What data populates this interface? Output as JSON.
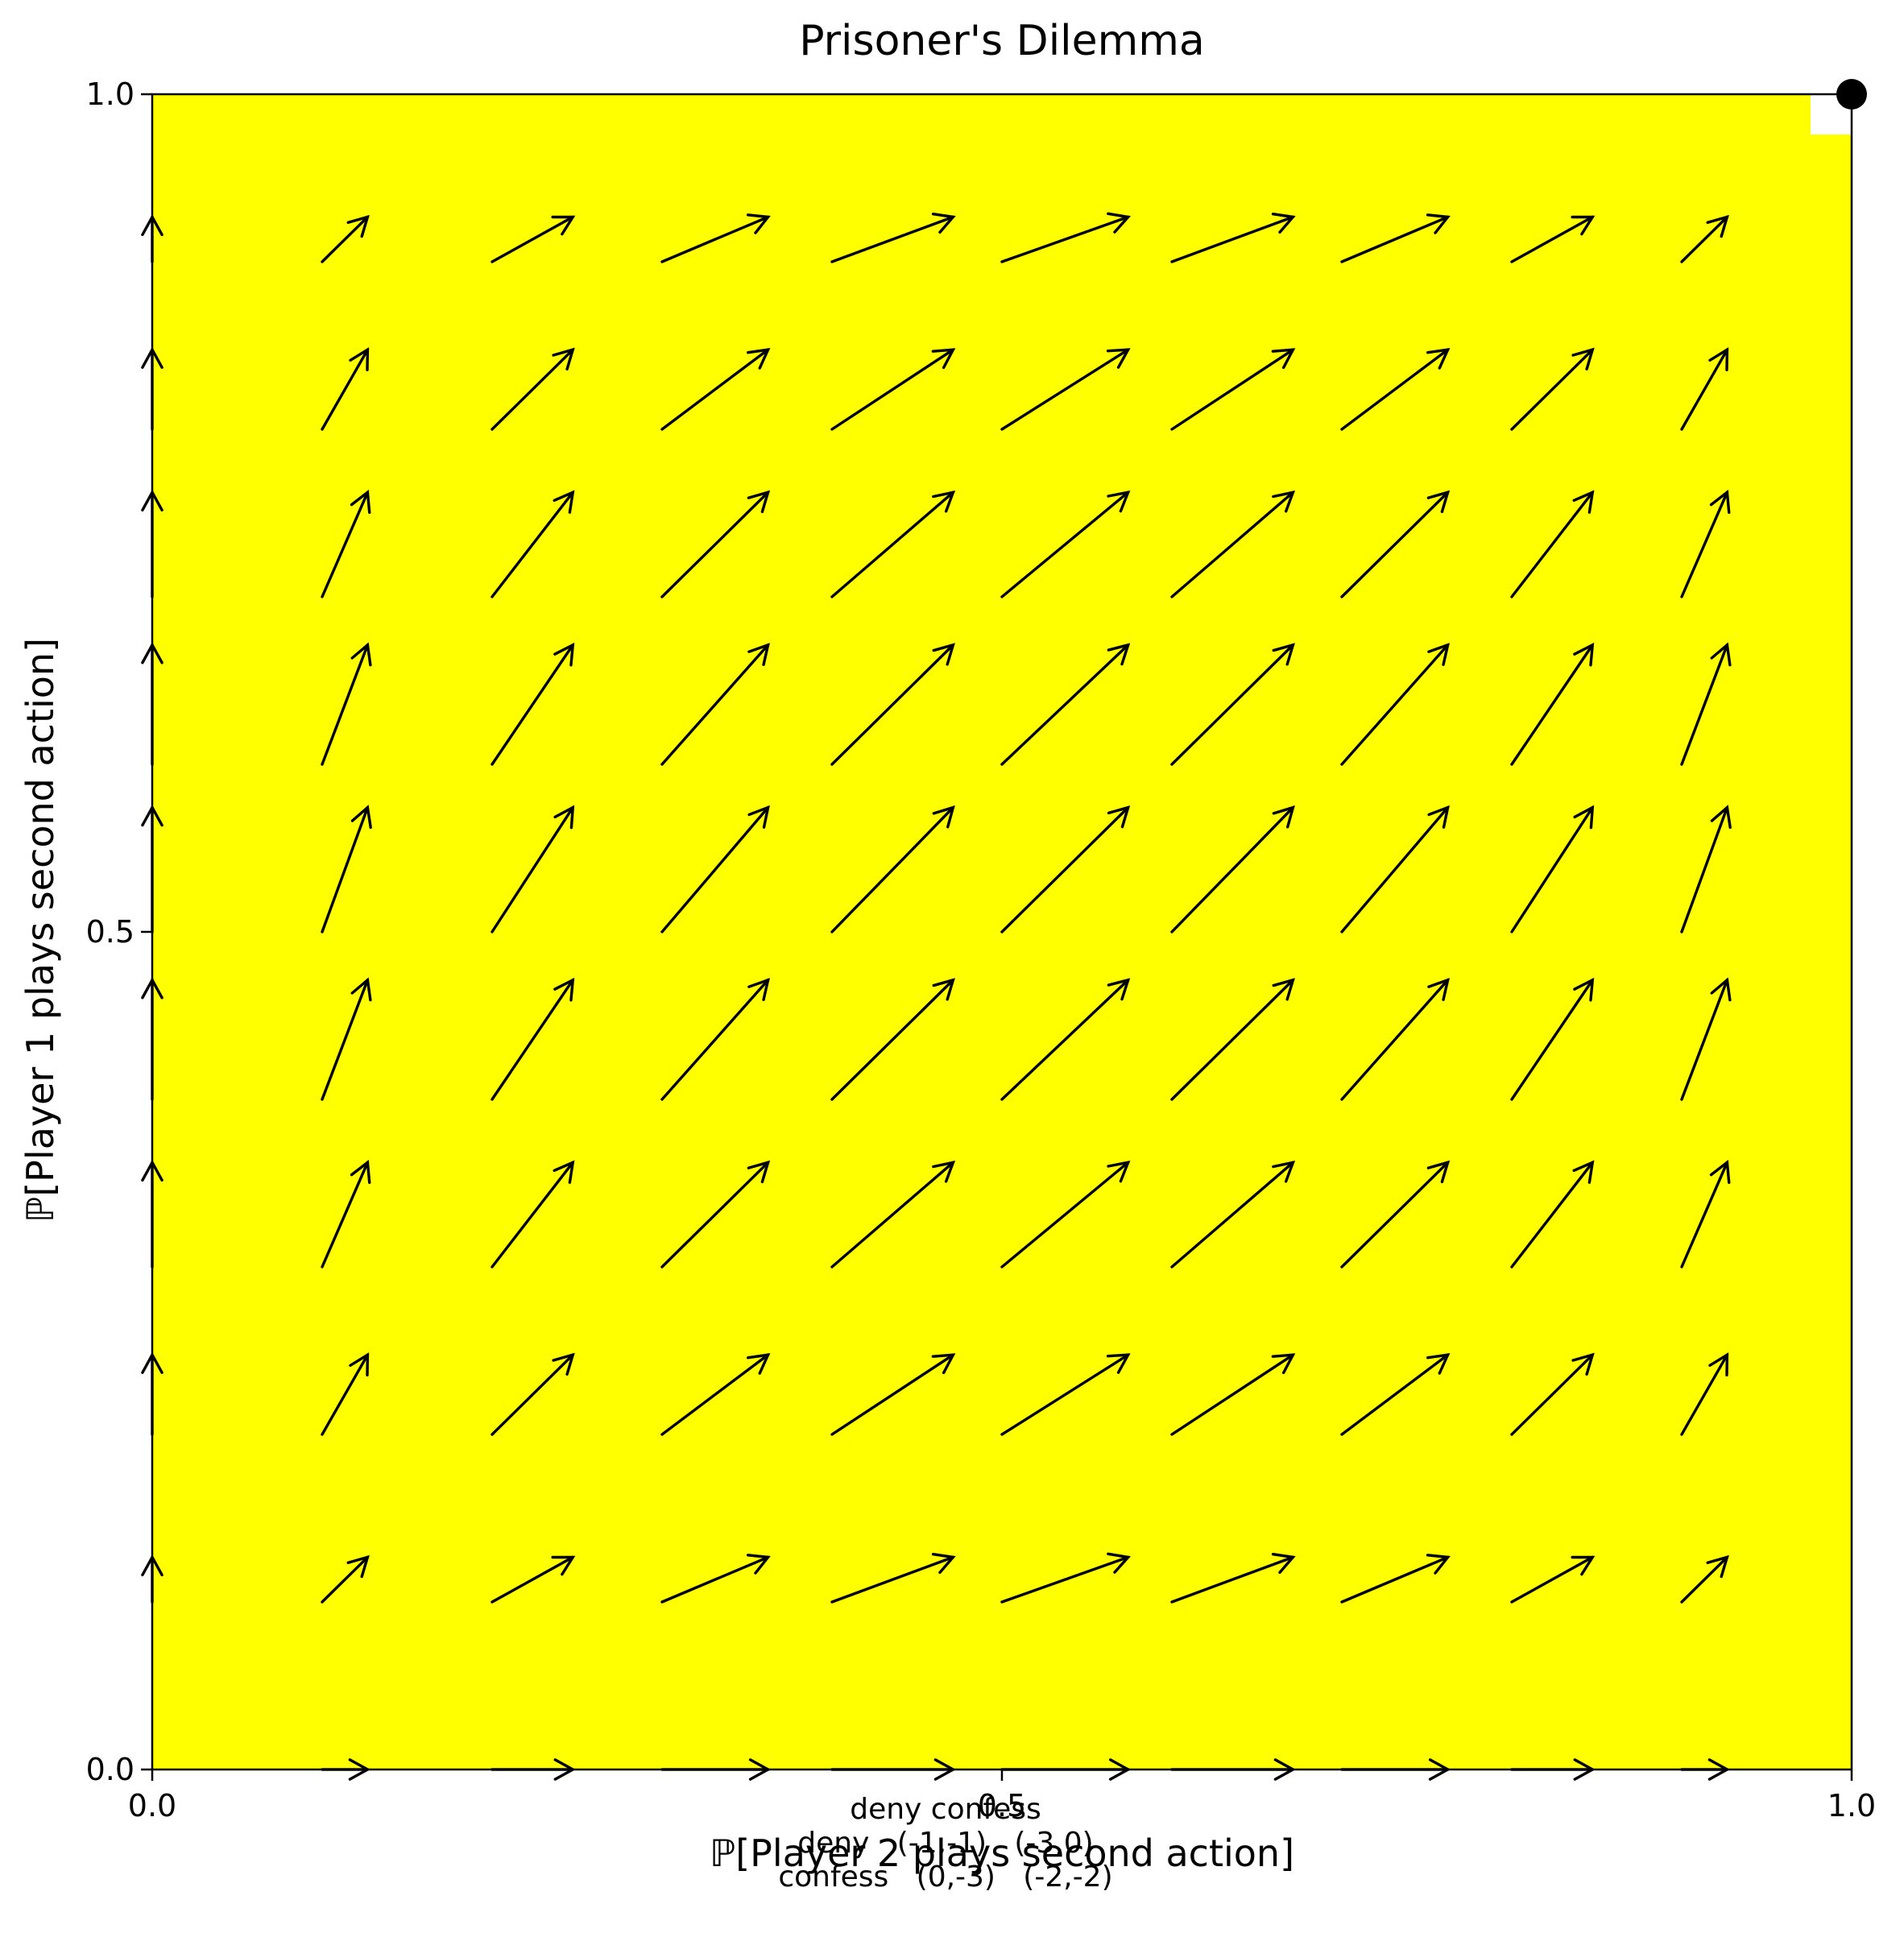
{
  "chart_data": {
    "type": "quiver",
    "title": "Prisoner's Dilemma",
    "xlabel": "ℙ[Player 2 plays second action]",
    "ylabel": "ℙ[Player 1 plays second action]",
    "xlim": [
      0,
      1
    ],
    "ylim": [
      0,
      1
    ],
    "xticks": [
      "0.0",
      "0.5",
      "1.0"
    ],
    "yticks": [
      "0.0",
      "0.5",
      "1.0"
    ],
    "grid": false,
    "background_color": "#ffff00",
    "arrow_color": "#000000",
    "payoff_table": {
      "header": "deny confess",
      "rows": [
        "deny   (-1,-1)   (-3,0)",
        "confess   (0,-3)   (-2,-2)"
      ]
    },
    "equilibrium_point": {
      "x": 1.0,
      "y": 1.0,
      "color": "#000000"
    },
    "vector_field": {
      "grid": [
        0.0,
        0.1,
        0.2,
        0.3,
        0.4,
        0.5,
        0.6,
        0.7,
        0.8,
        0.9
      ],
      "payoffs": {
        "player1": [
          [
            -1,
            -3
          ],
          [
            0,
            -2
          ]
        ],
        "player2": [
          [
            -1,
            0
          ],
          [
            -3,
            -2
          ]
        ]
      }
    }
  }
}
